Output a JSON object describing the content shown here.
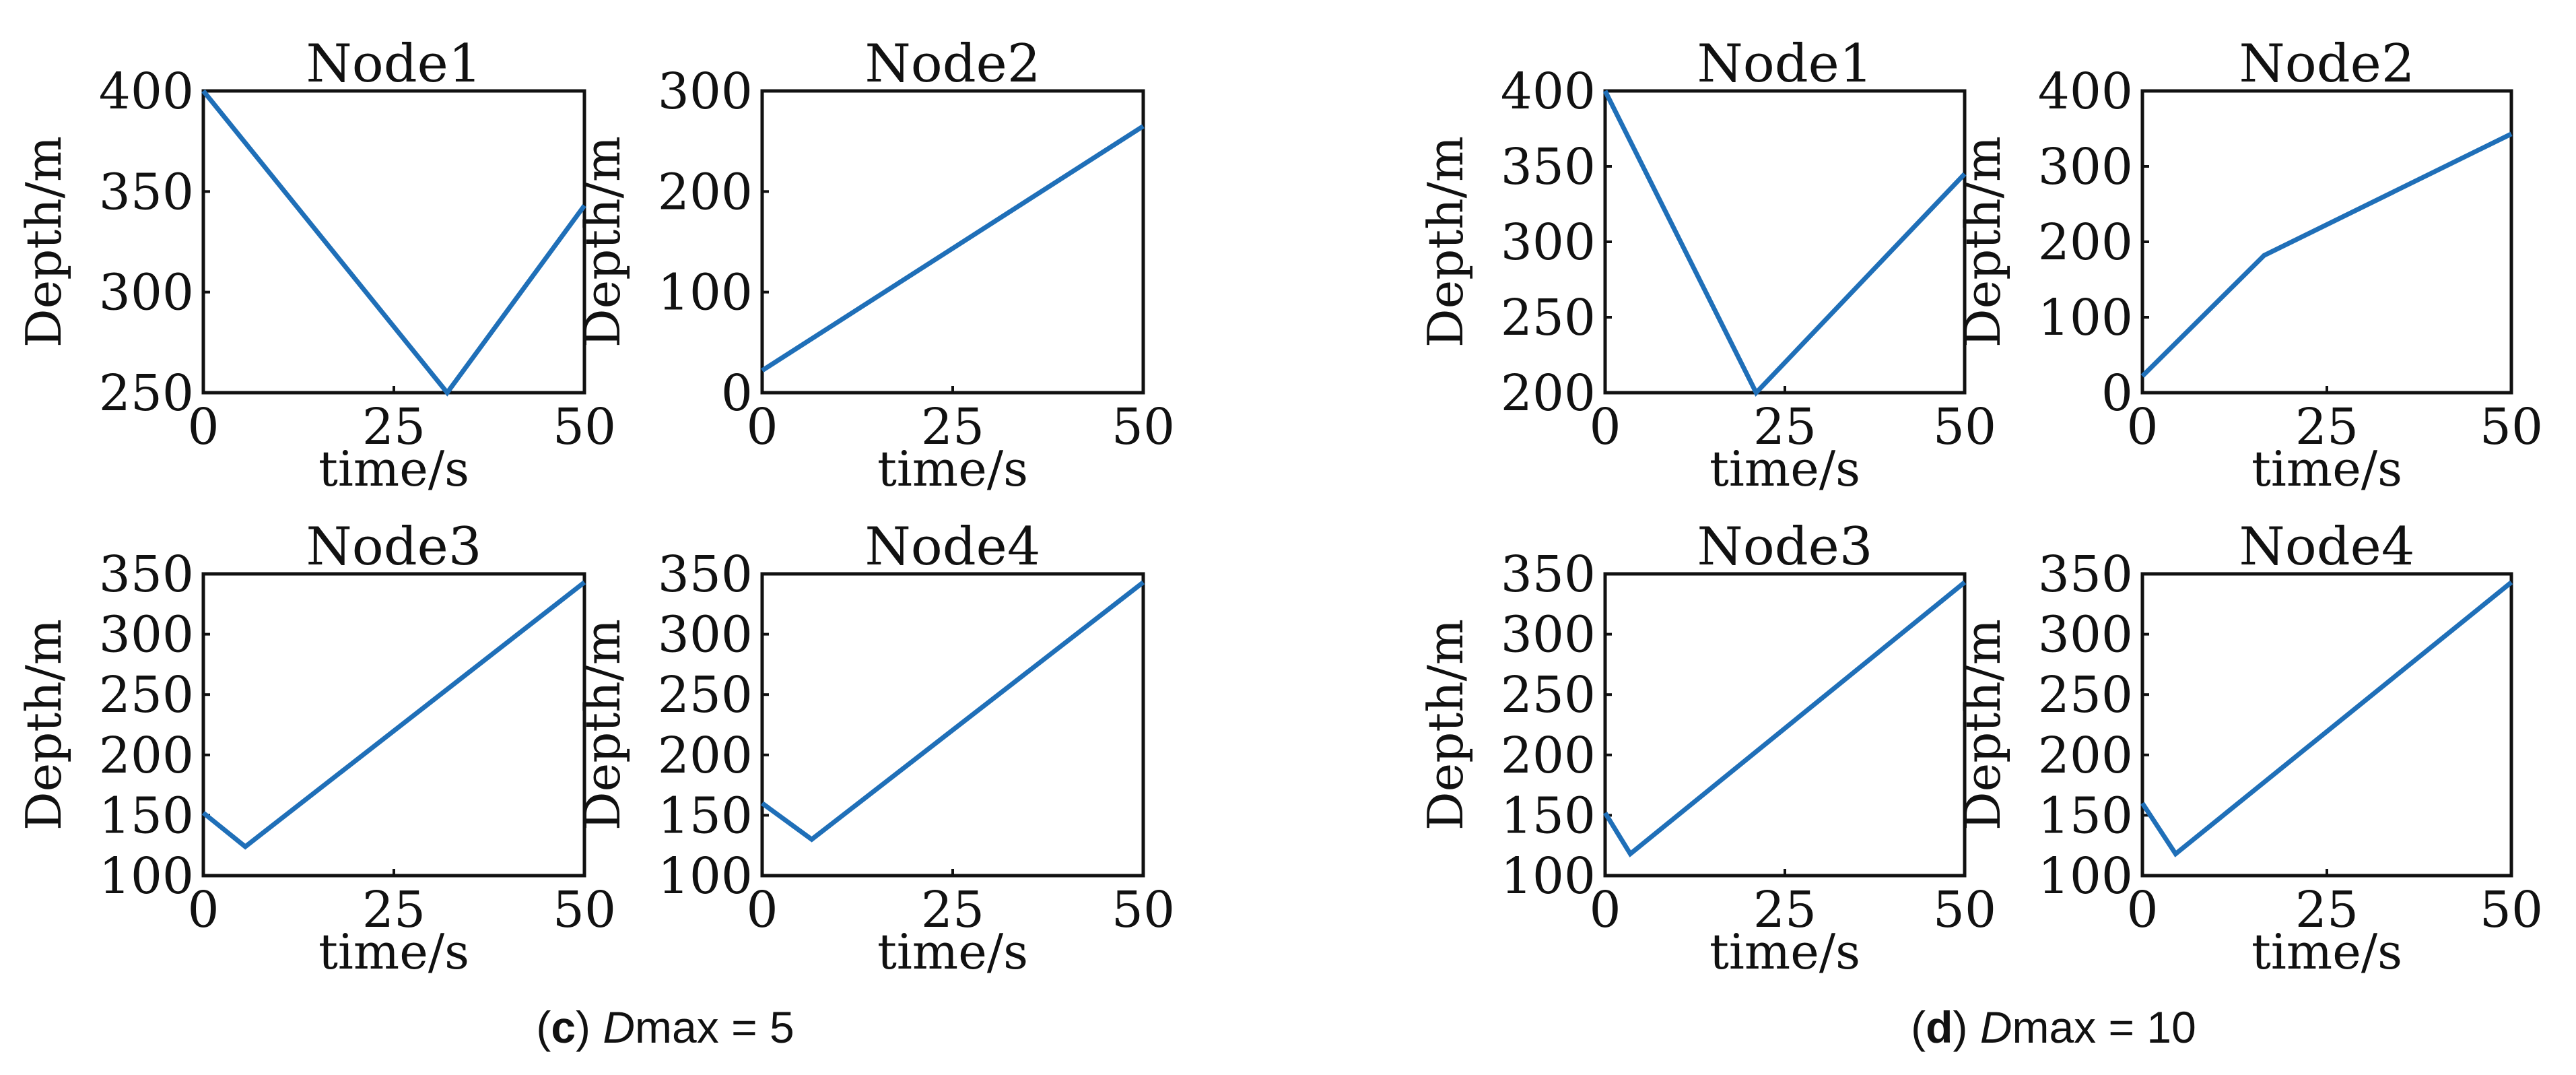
{
  "figure": {
    "panels": [
      {
        "caption_letter": "c",
        "caption_sym": "D",
        "caption_rest": "max = 5",
        "plots": [
          "c1",
          "c2",
          "c3",
          "c4"
        ]
      },
      {
        "caption_letter": "d",
        "caption_sym": "D",
        "caption_rest": "max = 10",
        "plots": [
          "d1",
          "d2",
          "d3",
          "d4"
        ]
      }
    ],
    "line_color": "#1f6fb8"
  },
  "chart_data": [
    {
      "id": "c1",
      "type": "line",
      "title": "Node1",
      "xlabel": "time/s",
      "ylabel": "Depth/m",
      "xlim": [
        0,
        50
      ],
      "ylim": [
        250,
        400
      ],
      "xticks": [
        0,
        25,
        50
      ],
      "yticks": [
        250,
        300,
        350,
        400
      ],
      "x": [
        0,
        32,
        50
      ],
      "y": [
        400,
        250,
        343
      ]
    },
    {
      "id": "c2",
      "type": "line",
      "title": "Node2",
      "xlabel": "time/s",
      "ylabel": "Depth/m",
      "xlim": [
        0,
        50
      ],
      "ylim": [
        0,
        300
      ],
      "xticks": [
        0,
        25,
        50
      ],
      "yticks": [
        0,
        100,
        200,
        300
      ],
      "x": [
        0,
        50
      ],
      "y": [
        22,
        265
      ]
    },
    {
      "id": "c3",
      "type": "line",
      "title": "Node3",
      "xlabel": "time/s",
      "ylabel": "Depth/m",
      "xlim": [
        0,
        50
      ],
      "ylim": [
        100,
        350
      ],
      "xticks": [
        0,
        25,
        50
      ],
      "yticks": [
        100,
        150,
        200,
        250,
        300,
        350
      ],
      "x": [
        0,
        5.5,
        50
      ],
      "y": [
        152,
        124,
        343
      ]
    },
    {
      "id": "c4",
      "type": "line",
      "title": "Node4",
      "xlabel": "time/s",
      "ylabel": "Depth/m",
      "xlim": [
        0,
        50
      ],
      "ylim": [
        100,
        350
      ],
      "xticks": [
        0,
        25,
        50
      ],
      "yticks": [
        100,
        150,
        200,
        250,
        300,
        350
      ],
      "x": [
        0,
        6.5,
        50
      ],
      "y": [
        160,
        130,
        343
      ]
    },
    {
      "id": "d1",
      "type": "line",
      "title": "Node1",
      "xlabel": "time/s",
      "ylabel": "Depth/m",
      "xlim": [
        0,
        50
      ],
      "ylim": [
        200,
        400
      ],
      "xticks": [
        0,
        25,
        50
      ],
      "yticks": [
        200,
        250,
        300,
        350,
        400
      ],
      "x": [
        0,
        21,
        50
      ],
      "y": [
        400,
        200,
        345
      ]
    },
    {
      "id": "d2",
      "type": "line",
      "title": "Node2",
      "xlabel": "time/s",
      "ylabel": "Depth/m",
      "xlim": [
        0,
        50
      ],
      "ylim": [
        0,
        400
      ],
      "xticks": [
        0,
        25,
        50
      ],
      "yticks": [
        0,
        100,
        200,
        300,
        400
      ],
      "x": [
        0,
        16.5,
        50
      ],
      "y": [
        22,
        182,
        343
      ]
    },
    {
      "id": "d3",
      "type": "line",
      "title": "Node3",
      "xlabel": "time/s",
      "ylabel": "Depth/m",
      "xlim": [
        0,
        50
      ],
      "ylim": [
        100,
        350
      ],
      "xticks": [
        0,
        25,
        50
      ],
      "yticks": [
        100,
        150,
        200,
        250,
        300,
        350
      ],
      "x": [
        0,
        3.5,
        50
      ],
      "y": [
        152,
        118,
        343
      ]
    },
    {
      "id": "d4",
      "type": "line",
      "title": "Node4",
      "xlabel": "time/s",
      "ylabel": "Depth/m",
      "xlim": [
        0,
        50
      ],
      "ylim": [
        100,
        350
      ],
      "xticks": [
        0,
        25,
        50
      ],
      "yticks": [
        100,
        150,
        200,
        250,
        300,
        350
      ],
      "x": [
        0,
        4.5,
        50
      ],
      "y": [
        160,
        118,
        343
      ]
    }
  ]
}
